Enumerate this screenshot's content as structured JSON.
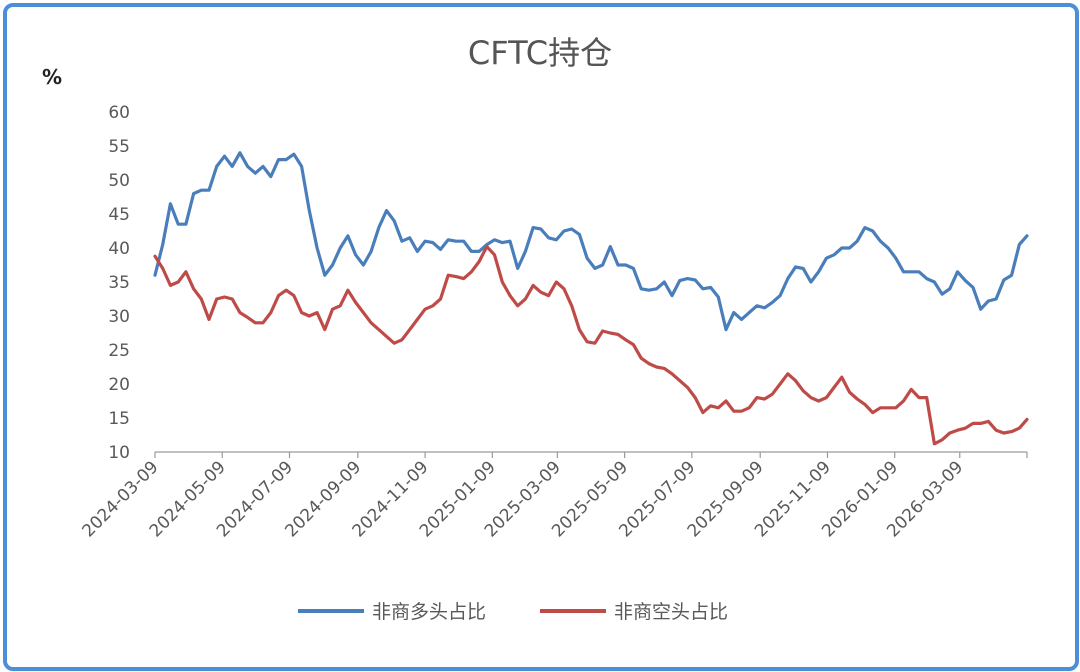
{
  "chart_data": {
    "type": "line",
    "title": "CFTC持仓",
    "ylabel": "%",
    "ylim": [
      10,
      60
    ],
    "yticks": [
      10,
      15,
      20,
      25,
      30,
      35,
      40,
      45,
      50,
      55,
      60
    ],
    "x_tick_labels": [
      "2024-03-09",
      "2024-05-09",
      "2024-07-09",
      "2024-09-09",
      "2024-11-09",
      "2025-01-09",
      "2025-03-09",
      "2025-05-09",
      "2025-07-09",
      "2025-09-09",
      "2025-11-09",
      "2026-01-09",
      "2026-03-09"
    ],
    "x_range": [
      "2024-03-09",
      "2026-05-09"
    ],
    "grid": false,
    "legend_position": "bottom",
    "series": [
      {
        "name": "非商多头占比",
        "color": "#4a7ebb",
        "points": [
          [
            "2024-03-09",
            36.0
          ],
          [
            "2024-03-16",
            40.5
          ],
          [
            "2024-03-23",
            46.5
          ],
          [
            "2024-03-30",
            43.5
          ],
          [
            "2024-04-06",
            43.5
          ],
          [
            "2024-04-13",
            48.0
          ],
          [
            "2024-04-20",
            48.5
          ],
          [
            "2024-04-27",
            48.5
          ],
          [
            "2024-05-04",
            52.0
          ],
          [
            "2024-05-11",
            53.5
          ],
          [
            "2024-05-18",
            52.0
          ],
          [
            "2024-05-25",
            54.0
          ],
          [
            "2024-06-01",
            52.0
          ],
          [
            "2024-06-08",
            51.0
          ],
          [
            "2024-06-15",
            52.0
          ],
          [
            "2024-06-22",
            50.5
          ],
          [
            "2024-06-29",
            53.0
          ],
          [
            "2024-07-06",
            53.0
          ],
          [
            "2024-07-13",
            53.8
          ],
          [
            "2024-07-20",
            52.0
          ],
          [
            "2024-07-27",
            45.5
          ],
          [
            "2024-08-03",
            40.0
          ],
          [
            "2024-08-10",
            36.0
          ],
          [
            "2024-08-17",
            37.5
          ],
          [
            "2024-08-24",
            40.0
          ],
          [
            "2024-08-31",
            41.8
          ],
          [
            "2024-09-07",
            39.0
          ],
          [
            "2024-09-14",
            37.5
          ],
          [
            "2024-09-21",
            39.5
          ],
          [
            "2024-09-28",
            43.0
          ],
          [
            "2024-10-05",
            45.5
          ],
          [
            "2024-10-12",
            44.0
          ],
          [
            "2024-10-19",
            41.0
          ],
          [
            "2024-10-26",
            41.5
          ],
          [
            "2024-11-02",
            39.5
          ],
          [
            "2024-11-09",
            41.0
          ],
          [
            "2024-11-16",
            40.8
          ],
          [
            "2024-11-23",
            39.8
          ],
          [
            "2024-11-30",
            41.2
          ],
          [
            "2024-12-07",
            41.0
          ],
          [
            "2024-12-14",
            41.0
          ],
          [
            "2024-12-21",
            39.5
          ],
          [
            "2024-12-28",
            39.5
          ],
          [
            "2025-01-04",
            40.5
          ],
          [
            "2025-01-11",
            41.2
          ],
          [
            "2025-01-18",
            40.8
          ],
          [
            "2025-01-25",
            41.0
          ],
          [
            "2025-02-01",
            37.0
          ],
          [
            "2025-02-08",
            39.5
          ],
          [
            "2025-02-15",
            43.0
          ],
          [
            "2025-02-22",
            42.8
          ],
          [
            "2025-03-01",
            41.5
          ],
          [
            "2025-03-08",
            41.2
          ],
          [
            "2025-03-15",
            42.5
          ],
          [
            "2025-03-22",
            42.8
          ],
          [
            "2025-03-29",
            42.0
          ],
          [
            "2025-04-05",
            38.5
          ],
          [
            "2025-04-12",
            37.0
          ],
          [
            "2025-04-19",
            37.5
          ],
          [
            "2025-04-26",
            40.2
          ],
          [
            "2025-05-03",
            37.5
          ],
          [
            "2025-05-10",
            37.5
          ],
          [
            "2025-05-17",
            37.0
          ],
          [
            "2025-05-24",
            34.0
          ],
          [
            "2025-05-31",
            33.8
          ],
          [
            "2025-06-07",
            34.0
          ],
          [
            "2025-06-14",
            35.0
          ],
          [
            "2025-06-21",
            33.0
          ],
          [
            "2025-06-28",
            35.2
          ],
          [
            "2025-07-05",
            35.5
          ],
          [
            "2025-07-12",
            35.3
          ],
          [
            "2025-07-19",
            34.0
          ],
          [
            "2025-07-26",
            34.2
          ],
          [
            "2025-08-02",
            32.8
          ],
          [
            "2025-08-09",
            28.0
          ],
          [
            "2025-08-16",
            30.5
          ],
          [
            "2025-08-23",
            29.5
          ],
          [
            "2025-08-30",
            30.5
          ],
          [
            "2025-09-06",
            31.5
          ],
          [
            "2025-09-13",
            31.2
          ],
          [
            "2025-09-20",
            32.0
          ],
          [
            "2025-09-27",
            33.0
          ],
          [
            "2025-10-04",
            35.5
          ],
          [
            "2025-10-11",
            37.2
          ],
          [
            "2025-10-18",
            37.0
          ],
          [
            "2025-10-25",
            35.0
          ],
          [
            "2025-11-01",
            36.5
          ],
          [
            "2025-11-08",
            38.5
          ],
          [
            "2025-11-15",
            39.0
          ],
          [
            "2025-11-22",
            40.0
          ],
          [
            "2025-11-29",
            40.0
          ],
          [
            "2025-12-06",
            41.0
          ],
          [
            "2025-12-13",
            43.0
          ],
          [
            "2025-12-20",
            42.5
          ],
          [
            "2025-12-27",
            41.0
          ],
          [
            "2026-01-03",
            40.0
          ],
          [
            "2026-01-10",
            38.5
          ],
          [
            "2026-01-17",
            36.5
          ],
          [
            "2026-01-24",
            36.5
          ],
          [
            "2026-01-31",
            36.5
          ],
          [
            "2026-02-07",
            35.5
          ],
          [
            "2026-02-14",
            35.0
          ],
          [
            "2026-02-21",
            33.2
          ],
          [
            "2026-02-28",
            34.0
          ],
          [
            "2026-03-07",
            36.5
          ],
          [
            "2026-03-14",
            35.2
          ],
          [
            "2026-03-21",
            34.2
          ],
          [
            "2026-03-28",
            31.0
          ],
          [
            "2026-04-04",
            32.2
          ],
          [
            "2026-04-11",
            32.5
          ],
          [
            "2026-04-18",
            35.3
          ],
          [
            "2026-04-25",
            36.0
          ],
          [
            "2026-05-02",
            40.5
          ],
          [
            "2026-05-09",
            41.8
          ]
        ]
      },
      {
        "name": "非商空头占比",
        "color": "#be4b48",
        "points": [
          [
            "2024-03-09",
            38.8
          ],
          [
            "2024-03-16",
            37.0
          ],
          [
            "2024-03-23",
            34.5
          ],
          [
            "2024-03-30",
            35.0
          ],
          [
            "2024-04-06",
            36.5
          ],
          [
            "2024-04-13",
            34.0
          ],
          [
            "2024-04-20",
            32.5
          ],
          [
            "2024-04-27",
            29.5
          ],
          [
            "2024-05-04",
            32.5
          ],
          [
            "2024-05-11",
            32.8
          ],
          [
            "2024-05-18",
            32.5
          ],
          [
            "2024-05-25",
            30.5
          ],
          [
            "2024-06-01",
            29.8
          ],
          [
            "2024-06-08",
            29.0
          ],
          [
            "2024-06-15",
            29.0
          ],
          [
            "2024-06-22",
            30.5
          ],
          [
            "2024-06-29",
            33.0
          ],
          [
            "2024-07-06",
            33.8
          ],
          [
            "2024-07-13",
            33.0
          ],
          [
            "2024-07-20",
            30.5
          ],
          [
            "2024-07-27",
            30.0
          ],
          [
            "2024-08-03",
            30.5
          ],
          [
            "2024-08-10",
            28.0
          ],
          [
            "2024-08-17",
            31.0
          ],
          [
            "2024-08-24",
            31.5
          ],
          [
            "2024-08-31",
            33.8
          ],
          [
            "2024-09-07",
            32.0
          ],
          [
            "2024-09-14",
            30.5
          ],
          [
            "2024-09-21",
            29.0
          ],
          [
            "2024-09-28",
            28.0
          ],
          [
            "2024-10-05",
            27.0
          ],
          [
            "2024-10-12",
            26.0
          ],
          [
            "2024-10-19",
            26.5
          ],
          [
            "2024-10-26",
            28.0
          ],
          [
            "2024-11-02",
            29.5
          ],
          [
            "2024-11-09",
            31.0
          ],
          [
            "2024-11-16",
            31.5
          ],
          [
            "2024-11-23",
            32.5
          ],
          [
            "2024-11-30",
            36.0
          ],
          [
            "2024-12-07",
            35.8
          ],
          [
            "2024-12-14",
            35.5
          ],
          [
            "2024-12-21",
            36.5
          ],
          [
            "2024-12-28",
            38.0
          ],
          [
            "2025-01-04",
            40.2
          ],
          [
            "2025-01-11",
            39.0
          ],
          [
            "2025-01-18",
            35.0
          ],
          [
            "2025-01-25",
            33.0
          ],
          [
            "2025-02-01",
            31.5
          ],
          [
            "2025-02-08",
            32.5
          ],
          [
            "2025-02-15",
            34.5
          ],
          [
            "2025-02-22",
            33.5
          ],
          [
            "2025-03-01",
            33.0
          ],
          [
            "2025-03-08",
            35.0
          ],
          [
            "2025-03-15",
            34.0
          ],
          [
            "2025-03-22",
            31.5
          ],
          [
            "2025-03-29",
            28.0
          ],
          [
            "2025-04-05",
            26.2
          ],
          [
            "2025-04-12",
            26.0
          ],
          [
            "2025-04-19",
            27.8
          ],
          [
            "2025-04-26",
            27.5
          ],
          [
            "2025-05-03",
            27.3
          ],
          [
            "2025-05-10",
            26.5
          ],
          [
            "2025-05-17",
            25.8
          ],
          [
            "2025-05-24",
            23.8
          ],
          [
            "2025-05-31",
            23.0
          ],
          [
            "2025-06-07",
            22.5
          ],
          [
            "2025-06-14",
            22.3
          ],
          [
            "2025-06-21",
            21.5
          ],
          [
            "2025-06-28",
            20.5
          ],
          [
            "2025-07-05",
            19.5
          ],
          [
            "2025-07-12",
            18.0
          ],
          [
            "2025-07-19",
            15.8
          ],
          [
            "2025-07-26",
            16.8
          ],
          [
            "2025-08-02",
            16.5
          ],
          [
            "2025-08-09",
            17.5
          ],
          [
            "2025-08-16",
            16.0
          ],
          [
            "2025-08-23",
            16.0
          ],
          [
            "2025-08-30",
            16.5
          ],
          [
            "2025-09-06",
            18.0
          ],
          [
            "2025-09-13",
            17.8
          ],
          [
            "2025-09-20",
            18.5
          ],
          [
            "2025-09-27",
            20.0
          ],
          [
            "2025-10-04",
            21.5
          ],
          [
            "2025-10-11",
            20.5
          ],
          [
            "2025-10-18",
            19.0
          ],
          [
            "2025-10-25",
            18.0
          ],
          [
            "2025-11-01",
            17.5
          ],
          [
            "2025-11-08",
            18.0
          ],
          [
            "2025-11-15",
            19.5
          ],
          [
            "2025-11-22",
            21.0
          ],
          [
            "2025-11-29",
            18.8
          ],
          [
            "2025-12-06",
            17.8
          ],
          [
            "2025-12-13",
            17.0
          ],
          [
            "2025-12-20",
            15.8
          ],
          [
            "2025-12-27",
            16.5
          ],
          [
            "2026-01-03",
            16.5
          ],
          [
            "2026-01-10",
            16.5
          ],
          [
            "2026-01-17",
            17.5
          ],
          [
            "2026-01-24",
            19.2
          ],
          [
            "2026-01-31",
            18.0
          ],
          [
            "2026-02-07",
            18.0
          ],
          [
            "2026-02-14",
            11.2
          ],
          [
            "2026-02-21",
            11.8
          ],
          [
            "2026-02-28",
            12.8
          ],
          [
            "2026-03-07",
            13.2
          ],
          [
            "2026-03-14",
            13.5
          ],
          [
            "2026-03-21",
            14.2
          ],
          [
            "2026-03-28",
            14.2
          ],
          [
            "2026-04-04",
            14.5
          ],
          [
            "2026-04-11",
            13.2
          ],
          [
            "2026-04-18",
            12.8
          ],
          [
            "2026-04-25",
            13.0
          ],
          [
            "2026-05-02",
            13.5
          ],
          [
            "2026-05-09",
            14.8
          ]
        ]
      }
    ]
  }
}
